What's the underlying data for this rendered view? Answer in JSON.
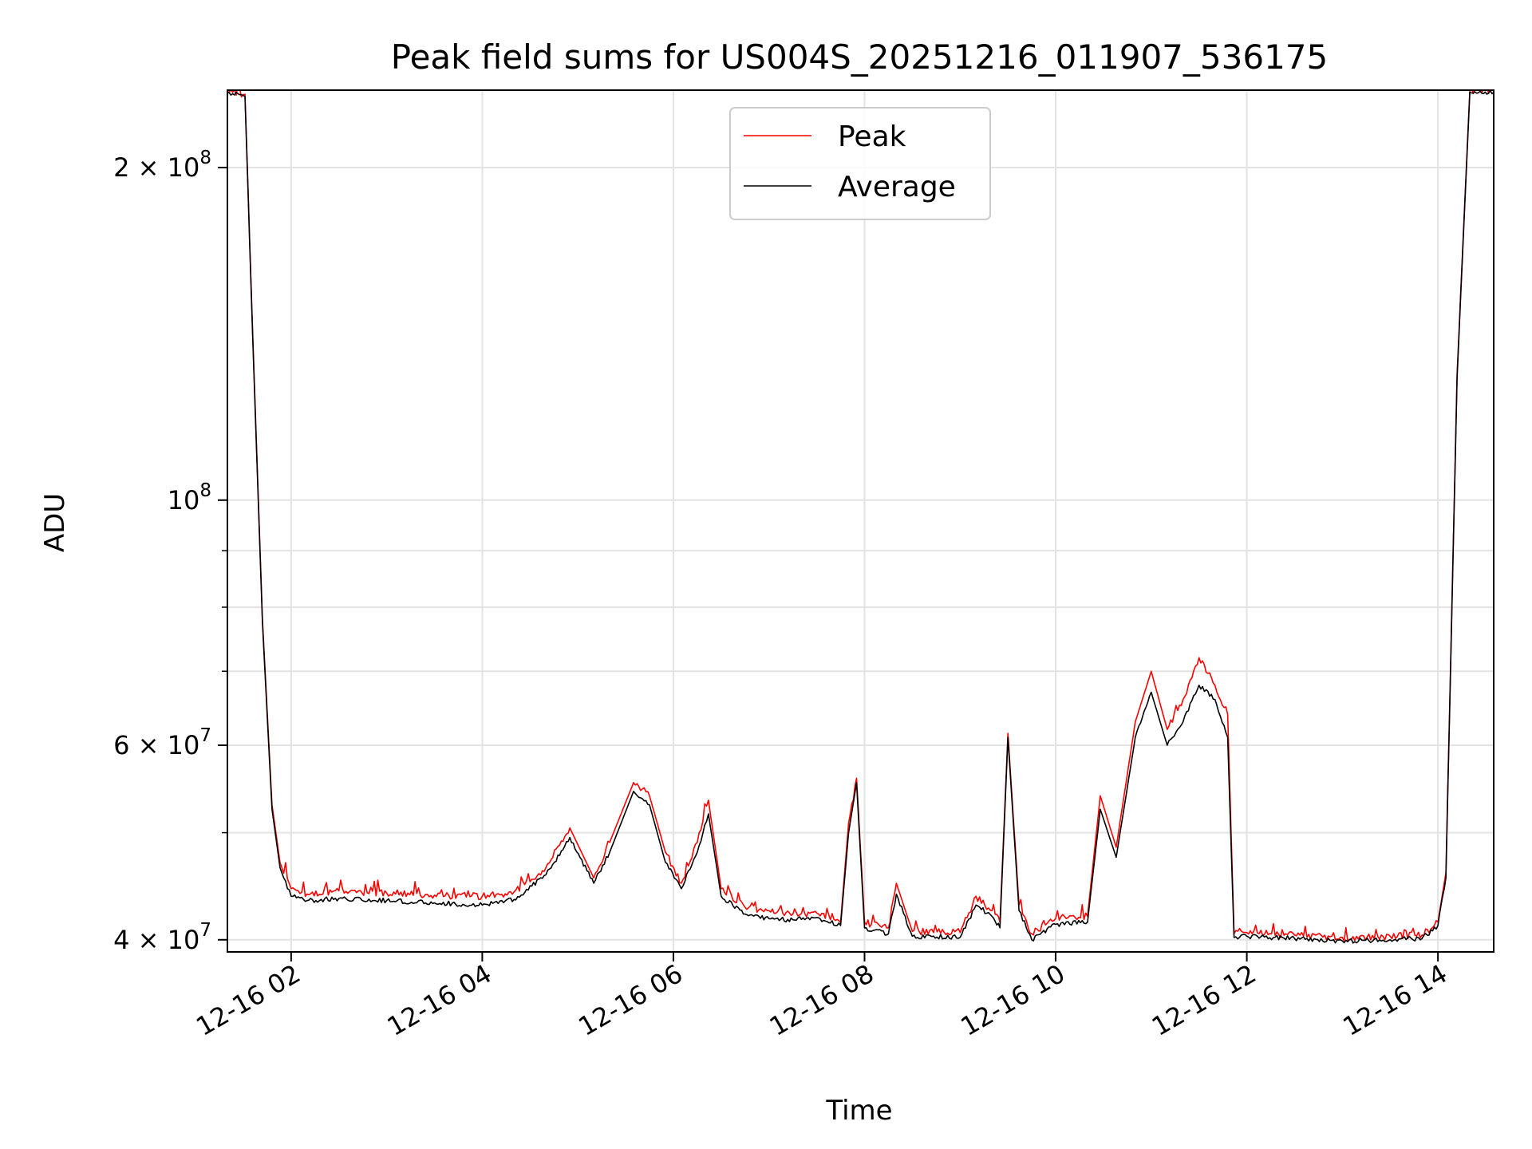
{
  "chart_data": {
    "type": "line",
    "title": "Peak field sums for US004S_20251216_011907_536175",
    "xlabel": "Time",
    "ylabel": "ADU",
    "yscale": "log",
    "ylim": [
      39000000,
      235000000
    ],
    "xlim": [
      "2025-12-16T01:20",
      "2025-12-16T14:35"
    ],
    "grid": true,
    "legend_position": "top-center",
    "x_ticks": [
      "2025-12-16T02:00",
      "2025-12-16T04:00",
      "2025-12-16T06:00",
      "2025-12-16T08:00",
      "2025-12-16T10:00",
      "2025-12-16T12:00",
      "2025-12-16T14:00"
    ],
    "x_tick_labels": [
      "12-16 02",
      "12-16 04",
      "12-16 06",
      "12-16 08",
      "12-16 10",
      "12-16 12",
      "12-16 14"
    ],
    "y_ticks": [
      {
        "value": 40000000,
        "base": "4 × 10",
        "exp": "7"
      },
      {
        "value": 60000000,
        "base": "6 × 10",
        "exp": "7"
      },
      {
        "value": 100000000,
        "base": "10",
        "exp": "8"
      },
      {
        "value": 200000000,
        "base": "2 × 10",
        "exp": "8"
      }
    ],
    "y_minor_ticks": [
      50000000,
      70000000,
      80000000,
      90000000
    ],
    "series": [
      {
        "name": "Peak",
        "color": "#ff0000",
        "x": [
          "2025-12-16T01:20",
          "2025-12-16T01:31",
          "2025-12-16T01:36",
          "2025-12-16T01:42",
          "2025-12-16T01:48",
          "2025-12-16T01:53",
          "2025-12-16T02:00",
          "2025-12-16T02:10",
          "2025-12-16T02:30",
          "2025-12-16T03:00",
          "2025-12-16T03:30",
          "2025-12-16T04:00",
          "2025-12-16T04:20",
          "2025-12-16T04:40",
          "2025-12-16T04:55",
          "2025-12-16T05:10",
          "2025-12-16T05:20",
          "2025-12-16T05:35",
          "2025-12-16T05:45",
          "2025-12-16T05:55",
          "2025-12-16T06:05",
          "2025-12-16T06:15",
          "2025-12-16T06:22",
          "2025-12-16T06:30",
          "2025-12-16T06:45",
          "2025-12-16T07:00",
          "2025-12-16T07:15",
          "2025-12-16T07:30",
          "2025-12-16T07:45",
          "2025-12-16T07:50",
          "2025-12-16T07:55",
          "2025-12-16T08:00",
          "2025-12-16T08:15",
          "2025-12-16T08:20",
          "2025-12-16T08:30",
          "2025-12-16T09:00",
          "2025-12-16T09:10",
          "2025-12-16T09:20",
          "2025-12-16T09:25",
          "2025-12-16T09:30",
          "2025-12-16T09:37",
          "2025-12-16T09:45",
          "2025-12-16T10:00",
          "2025-12-16T10:20",
          "2025-12-16T10:28",
          "2025-12-16T10:38",
          "2025-12-16T10:50",
          "2025-12-16T11:00",
          "2025-12-16T11:10",
          "2025-12-16T11:20",
          "2025-12-16T11:30",
          "2025-12-16T11:40",
          "2025-12-16T11:48",
          "2025-12-16T11:52",
          "2025-12-16T12:00",
          "2025-12-16T12:30",
          "2025-12-16T13:00",
          "2025-12-16T13:30",
          "2025-12-16T13:50",
          "2025-12-16T14:00",
          "2025-12-16T14:05",
          "2025-12-16T14:12",
          "2025-12-16T14:20",
          "2025-12-16T14:35"
        ],
        "values": [
          235000000,
          233000000,
          140000000,
          78000000,
          53000000,
          47000000,
          44500000,
          44000000,
          44300000,
          44100000,
          43900000,
          43800000,
          44200000,
          46500000,
          50500000,
          45500000,
          49000000,
          55500000,
          54000000,
          48000000,
          45000000,
          49000000,
          53500000,
          44500000,
          42800000,
          42500000,
          42200000,
          42300000,
          41500000,
          51000000,
          56000000,
          41500000,
          41000000,
          45000000,
          40700000,
          40600000,
          43800000,
          42500000,
          41500000,
          61500000,
          43000000,
          40500000,
          41800000,
          42000000,
          54000000,
          48500000,
          63000000,
          70000000,
          62000000,
          66000000,
          72000000,
          68000000,
          64000000,
          40500000,
          40600000,
          40400000,
          40200000,
          40300000,
          40400000,
          41500000,
          46000000,
          130000000,
          235000000,
          235000000
        ]
      },
      {
        "name": "Average",
        "color": "#000000",
        "x": [
          "2025-12-16T01:20",
          "2025-12-16T01:31",
          "2025-12-16T01:36",
          "2025-12-16T01:42",
          "2025-12-16T01:48",
          "2025-12-16T01:53",
          "2025-12-16T02:00",
          "2025-12-16T02:10",
          "2025-12-16T02:30",
          "2025-12-16T03:00",
          "2025-12-16T03:30",
          "2025-12-16T04:00",
          "2025-12-16T04:20",
          "2025-12-16T04:40",
          "2025-12-16T04:55",
          "2025-12-16T05:10",
          "2025-12-16T05:20",
          "2025-12-16T05:35",
          "2025-12-16T05:45",
          "2025-12-16T05:55",
          "2025-12-16T06:05",
          "2025-12-16T06:15",
          "2025-12-16T06:22",
          "2025-12-16T06:30",
          "2025-12-16T06:45",
          "2025-12-16T07:00",
          "2025-12-16T07:15",
          "2025-12-16T07:30",
          "2025-12-16T07:45",
          "2025-12-16T07:50",
          "2025-12-16T07:55",
          "2025-12-16T08:00",
          "2025-12-16T08:15",
          "2025-12-16T08:20",
          "2025-12-16T08:30",
          "2025-12-16T09:00",
          "2025-12-16T09:10",
          "2025-12-16T09:20",
          "2025-12-16T09:25",
          "2025-12-16T09:30",
          "2025-12-16T09:37",
          "2025-12-16T09:45",
          "2025-12-16T10:00",
          "2025-12-16T10:20",
          "2025-12-16T10:28",
          "2025-12-16T10:38",
          "2025-12-16T10:50",
          "2025-12-16T11:00",
          "2025-12-16T11:10",
          "2025-12-16T11:20",
          "2025-12-16T11:30",
          "2025-12-16T11:40",
          "2025-12-16T11:48",
          "2025-12-16T11:52",
          "2025-12-16T12:00",
          "2025-12-16T12:30",
          "2025-12-16T13:00",
          "2025-12-16T13:30",
          "2025-12-16T13:50",
          "2025-12-16T14:00",
          "2025-12-16T14:05",
          "2025-12-16T14:12",
          "2025-12-16T14:20",
          "2025-12-16T14:35"
        ],
        "values": [
          234000000,
          232000000,
          139000000,
          77500000,
          52500000,
          46500000,
          43800000,
          43400000,
          43600000,
          43400000,
          43200000,
          43000000,
          43500000,
          45800000,
          49500000,
          45000000,
          48000000,
          54500000,
          53000000,
          47000000,
          44500000,
          48000000,
          52000000,
          43800000,
          42200000,
          41800000,
          41700000,
          41900000,
          41200000,
          50000000,
          55500000,
          41000000,
          40500000,
          44000000,
          40300000,
          40200000,
          43000000,
          42000000,
          41000000,
          61000000,
          42500000,
          40000000,
          41300000,
          41500000,
          52500000,
          47500000,
          61000000,
          67000000,
          60000000,
          63000000,
          68000000,
          66000000,
          61000000,
          40200000,
          40300000,
          40100000,
          39900000,
          40000000,
          40100000,
          41200000,
          45500000,
          129000000,
          234000000,
          234000000
        ]
      }
    ]
  }
}
